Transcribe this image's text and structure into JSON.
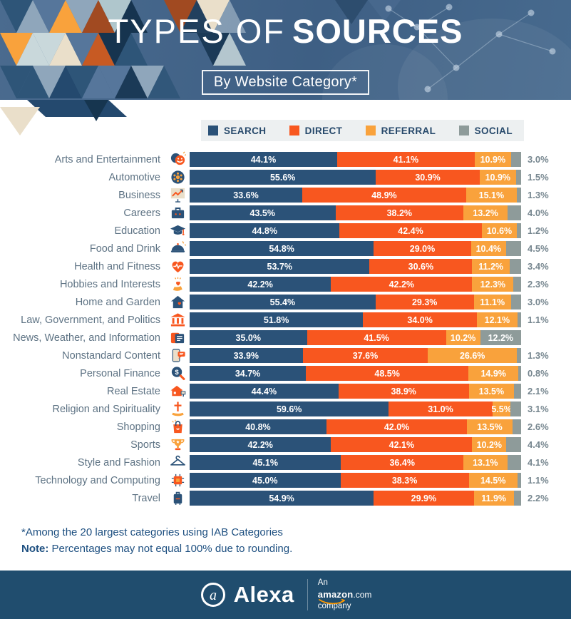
{
  "header": {
    "title_light": "TYPES OF",
    "title_bold": "SOURCES",
    "subtitle": "By Website Category*"
  },
  "palette": {
    "search": "#2B5278",
    "direct": "#F8571F",
    "referral": "#F9A23C",
    "social": "#8E9B9A",
    "header_bg": "#44658B",
    "footer_bar": "#204D6E",
    "category_label": "#5E7384",
    "outside_value": "#76868F",
    "legend_bg": "#EDF0F1",
    "legend_text": "#27496B",
    "note_text": "#1D4F80",
    "amazon_smile": "#FF9900"
  },
  "chart_data": {
    "type": "bar",
    "stacked": true,
    "orientation": "horizontal",
    "unit": "percent",
    "legend_position": "top",
    "value_labels": "inside, one decimal, social shown outside bar when small",
    "categories": [
      "Arts and Entertainment",
      "Automotive",
      "Business",
      "Careers",
      "Education",
      "Food and Drink",
      "Health and Fitness",
      "Hobbies and Interests",
      "Home and Garden",
      "Law, Government, and Politics",
      "News, Weather, and Information",
      "Nonstandard Content",
      "Personal Finance",
      "Real Estate",
      "Religion and Spirituality",
      "Shopping",
      "Sports",
      "Style and Fashion",
      "Technology and Computing",
      "Travel"
    ],
    "category_icons": [
      "theater-masks-icon",
      "wheel-icon",
      "chart-line-icon",
      "briefcase-icon",
      "graduation-cap-icon",
      "food-cloche-icon",
      "heart-pulse-icon",
      "hand-heart-icon",
      "house-icon",
      "bank-icon",
      "newspaper-icon",
      "phone-chat-icon",
      "magnifier-dollar-icon",
      "house-sign-icon",
      "cross-hands-icon",
      "shopping-bag-icon",
      "trophy-icon",
      "hanger-icon",
      "chip-icon",
      "suitcase-icon"
    ],
    "series": [
      {
        "name": "SEARCH",
        "color": "#2B5278",
        "values": [
          44.1,
          55.6,
          33.6,
          43.5,
          44.8,
          54.8,
          53.7,
          42.2,
          55.4,
          51.8,
          35.0,
          33.9,
          34.7,
          44.4,
          59.6,
          40.8,
          42.2,
          45.1,
          45.0,
          54.9
        ]
      },
      {
        "name": "DIRECT",
        "color": "#F8571F",
        "values": [
          41.1,
          30.9,
          48.9,
          38.2,
          42.4,
          29.0,
          30.6,
          42.2,
          29.3,
          34.0,
          41.5,
          37.6,
          48.5,
          38.9,
          31.0,
          42.0,
          42.1,
          36.4,
          38.3,
          29.9
        ]
      },
      {
        "name": "REFERRAL",
        "color": "#F9A23C",
        "values": [
          10.9,
          10.9,
          15.1,
          13.2,
          10.6,
          10.4,
          11.2,
          12.3,
          11.1,
          12.1,
          10.2,
          26.6,
          14.9,
          13.5,
          5.5,
          13.5,
          10.2,
          13.1,
          14.5,
          11.9
        ]
      },
      {
        "name": "SOCIAL",
        "color": "#8E9B9A",
        "values": [
          3.0,
          1.5,
          1.3,
          4.0,
          1.2,
          4.5,
          3.4,
          2.3,
          3.0,
          1.1,
          12.2,
          1.3,
          0.8,
          2.1,
          3.1,
          2.6,
          4.4,
          4.1,
          1.1,
          2.2
        ]
      }
    ]
  },
  "footnotes": {
    "line1": "*Among the 20 largest categories using IAB Categories",
    "note_label": "Note:",
    "note_text": "Percentages may not equal 100% due to rounding."
  },
  "footer": {
    "brand": "Alexa",
    "an": "An",
    "amazon": "amazon",
    "dotcom": ".com",
    "company": "company"
  }
}
